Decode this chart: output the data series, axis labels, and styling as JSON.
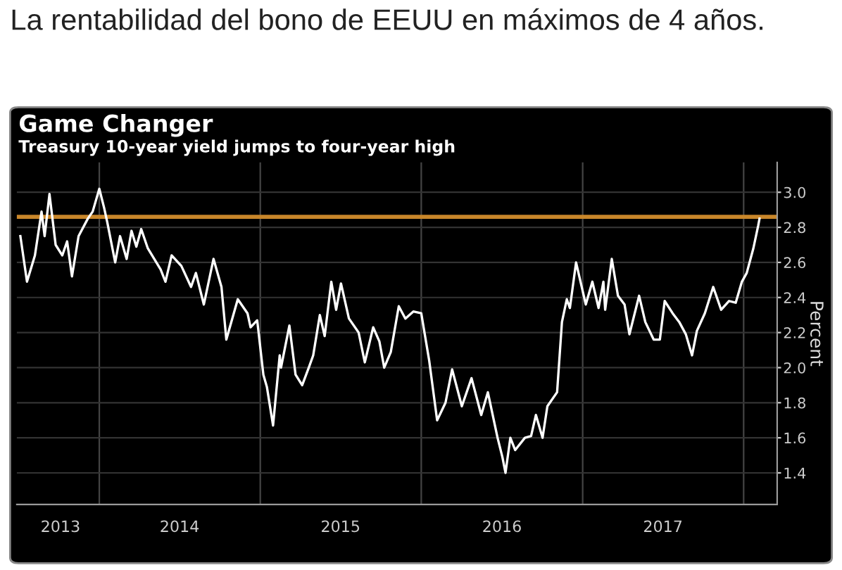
{
  "chart_data": {
    "type": "line",
    "title": "Game Changer",
    "subtitle": "Treasury 10-year yield jumps to four-year high",
    "ylabel": "Percent",
    "annotations": [
      "La rentabilidad del bono de EEUU en máximos de 4 años."
    ],
    "x": [
      "2013-07-06",
      "2013-07-21",
      "2013-08-08",
      "2013-08-23",
      "2013-08-30",
      "2013-09-10",
      "2013-09-24",
      "2013-10-09",
      "2013-10-20",
      "2013-10-31",
      "2013-11-15",
      "2013-12-06",
      "2013-12-17",
      "2014-01-01",
      "2014-01-12",
      "2014-01-19",
      "2014-02-06",
      "2014-02-17",
      "2014-03-04",
      "2014-03-15",
      "2014-03-26",
      "2014-04-06",
      "2014-04-21",
      "2014-05-20",
      "2014-05-31",
      "2014-06-14",
      "2014-07-06",
      "2014-07-28",
      "2014-08-08",
      "2014-08-26",
      "2014-09-17",
      "2014-10-05",
      "2014-10-16",
      "2014-11-11",
      "2014-12-03",
      "2014-12-10",
      "2014-12-25",
      "2015-01-08",
      "2015-01-16",
      "2015-01-30",
      "2015-02-14",
      "2015-02-17",
      "2015-03-08",
      "2015-03-22",
      "2015-04-06",
      "2015-04-21",
      "2015-05-01",
      "2015-05-16",
      "2015-05-27",
      "2015-06-11",
      "2015-06-22",
      "2015-07-03",
      "2015-07-21",
      "2015-08-12",
      "2015-08-26",
      "2015-09-14",
      "2015-09-28",
      "2015-10-09",
      "2015-10-24",
      "2015-11-11",
      "2015-11-26",
      "2015-12-14",
      "2016-01-01",
      "2016-01-19",
      "2016-02-06",
      "2016-02-25",
      "2016-03-11",
      "2016-04-02",
      "2016-04-24",
      "2016-05-16",
      "2016-05-31",
      "2016-06-22",
      "2016-07-03",
      "2016-07-10",
      "2016-07-21",
      "2016-08-01",
      "2016-08-23",
      "2016-09-06",
      "2016-09-17",
      "2016-10-02",
      "2016-10-13",
      "2016-11-04",
      "2016-11-15",
      "2016-11-26",
      "2016-12-03",
      "2016-12-17",
      "2017-01-08",
      "2017-01-23",
      "2017-02-06",
      "2017-02-17",
      "2017-02-21",
      "2017-03-08",
      "2017-03-22",
      "2017-04-06",
      "2017-04-17",
      "2017-05-09",
      "2017-05-23",
      "2017-06-11",
      "2017-06-25",
      "2017-07-06",
      "2017-07-24",
      "2017-08-08",
      "2017-08-23",
      "2017-09-06",
      "2017-09-17",
      "2017-10-05",
      "2017-10-24",
      "2017-11-11",
      "2017-11-29",
      "2017-12-14",
      "2017-12-28",
      "2018-01-08",
      "2018-01-23",
      "2018-02-03",
      "2018-02-06"
    ],
    "series": [
      {
        "color": "#ffffff",
        "values": [
          2.75,
          2.49,
          2.64,
          2.89,
          2.75,
          2.99,
          2.7,
          2.64,
          2.72,
          2.52,
          2.75,
          2.85,
          2.89,
          3.02,
          2.91,
          2.83,
          2.6,
          2.75,
          2.62,
          2.78,
          2.69,
          2.79,
          2.68,
          2.56,
          2.49,
          2.64,
          2.58,
          2.46,
          2.54,
          2.36,
          2.62,
          2.46,
          2.16,
          2.39,
          2.31,
          2.23,
          2.27,
          1.96,
          1.89,
          1.67,
          2.07,
          2.0,
          2.24,
          1.96,
          1.9,
          2.0,
          2.07,
          2.3,
          2.18,
          2.49,
          2.33,
          2.48,
          2.28,
          2.2,
          2.03,
          2.23,
          2.15,
          2.0,
          2.09,
          2.35,
          2.28,
          2.32,
          2.31,
          2.04,
          1.7,
          1.8,
          1.99,
          1.78,
          1.94,
          1.73,
          1.86,
          1.6,
          1.49,
          1.4,
          1.6,
          1.53,
          1.6,
          1.61,
          1.73,
          1.6,
          1.78,
          1.86,
          2.26,
          2.39,
          2.34,
          2.6,
          2.36,
          2.49,
          2.34,
          2.49,
          2.33,
          2.62,
          2.41,
          2.36,
          2.19,
          2.41,
          2.26,
          2.16,
          2.16,
          2.38,
          2.31,
          2.26,
          2.19,
          2.07,
          2.21,
          2.31,
          2.46,
          2.33,
          2.38,
          2.37,
          2.49,
          2.54,
          2.68,
          2.81,
          2.85
        ]
      }
    ],
    "xlim": [
      "2013-06-28",
      "2018-03-18"
    ],
    "xticks": [
      {
        "value": "2014-01-01",
        "label": null
      },
      {
        "value": "2015-01-01",
        "label": null
      },
      {
        "value": "2016-01-01",
        "label": null
      },
      {
        "value": "2017-01-01",
        "label": null
      },
      {
        "value": "2018-01-01",
        "label": null
      },
      {
        "value": "2013-10-05",
        "label": "2013"
      },
      {
        "value": "2014-07-02",
        "label": "2014"
      },
      {
        "value": "2015-07-02",
        "label": "2015"
      },
      {
        "value": "2016-07-02",
        "label": "2016"
      },
      {
        "value": "2017-07-02",
        "label": "2017"
      }
    ],
    "ylim": [
      1.22,
      3.17
    ],
    "yticks": [
      1.4,
      1.6,
      1.8,
      {
        "value": 2,
        "label": "2.0"
      },
      2.2,
      2.4,
      2.6,
      2.8,
      {
        "value": 3,
        "label": "3.0"
      }
    ],
    "ref_lines": [
      {
        "axis": "y",
        "value": 2.86,
        "color": "#c8862a"
      }
    ],
    "grid": true,
    "legend": false,
    "marker": "none",
    "line_style": "solid"
  }
}
